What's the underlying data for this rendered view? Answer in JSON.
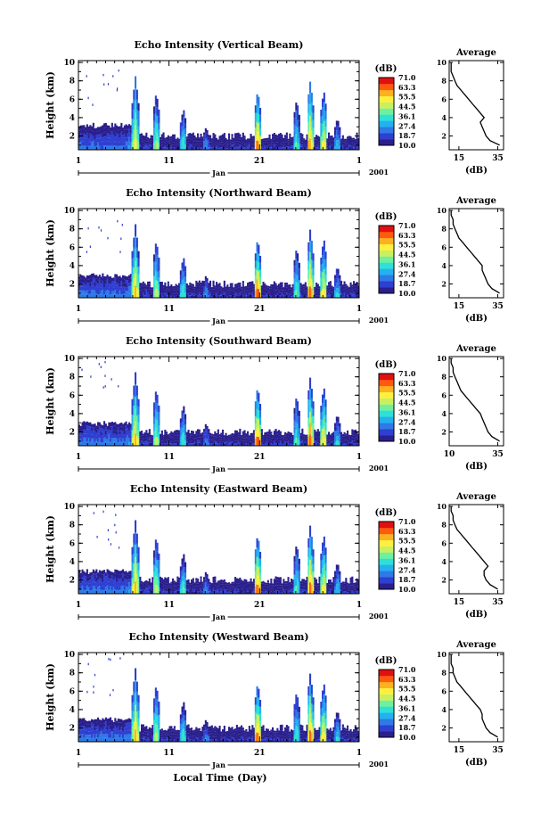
{
  "figure": {
    "xlabel_bottom": "Local Time (Day)",
    "month_label": "Jan",
    "year_label": "2001",
    "x_ticks": [
      "1",
      "11",
      "21",
      "1"
    ],
    "y_label": "Height (km)",
    "y_ticks": [
      "2",
      "4",
      "6",
      "8",
      "10"
    ],
    "colorbar_title": "(dB)",
    "colorbar_ticks": [
      "71.0",
      "63.3",
      "55.5",
      "44.5",
      "36.1",
      "27.4",
      "18.7",
      "10.0"
    ],
    "avg_title": "Average",
    "avg_xlabel": "(dB)"
  },
  "colors": {
    "scale": [
      "#2a1f8c",
      "#2f3fd0",
      "#2e7ae6",
      "#25b0f0",
      "#2ee0d8",
      "#6ef0a0",
      "#c8f060",
      "#fff040",
      "#ffb020",
      "#ff5a10",
      "#e01010"
    ]
  },
  "chart_data": [
    {
      "type": "heatmap",
      "title": "Echo Intensity (Vertical Beam)",
      "xlabel": "Local Time (Day)",
      "ylabel": "Height (km)",
      "x_range": [
        "2001-01-01",
        "2001-02-01"
      ],
      "ylim": [
        0.5,
        10.2
      ],
      "clim": [
        10.0,
        71.0
      ],
      "columns": [
        {
          "day": 1,
          "top_km": 2.8,
          "peak_db": 24
        },
        {
          "day": 3,
          "top_km": 3.2,
          "peak_db": 24
        },
        {
          "day": 5,
          "top_km": 3.5,
          "peak_db": 24
        },
        {
          "day": 6.5,
          "top_km": 3.2,
          "peak_db": 28
        },
        {
          "day": 7.2,
          "top_km": 8.5,
          "peak_db": 55
        },
        {
          "day": 8.5,
          "top_km": 2.0,
          "peak_db": 22
        },
        {
          "day": 9.5,
          "top_km": 6.8,
          "peak_db": 48
        },
        {
          "day": 12.5,
          "top_km": 5.0,
          "peak_db": 40
        },
        {
          "day": 15,
          "top_km": 3.0,
          "peak_db": 30
        },
        {
          "day": 20.7,
          "top_km": 7.0,
          "peak_db": 65
        },
        {
          "day": 25,
          "top_km": 6.0,
          "peak_db": 40
        },
        {
          "day": 26.5,
          "top_km": 8.0,
          "peak_db": 62
        },
        {
          "day": 28,
          "top_km": 7.0,
          "peak_db": 55
        },
        {
          "day": 29.5,
          "top_km": 4.0,
          "peak_db": 35
        }
      ],
      "profile_title": "Average",
      "profile_xlim": [
        10,
        38
      ],
      "profile_xticks": [
        "15",
        "35"
      ],
      "profile": {
        "height_km": [
          1.0,
          1.5,
          2.0,
          2.5,
          3.0,
          3.5,
          4.0,
          4.5,
          5.0,
          5.5,
          6.0,
          6.5,
          7.0,
          7.5,
          8.0,
          8.5,
          9.0,
          9.5,
          10.0
        ],
        "db": [
          36,
          31,
          29,
          28,
          27,
          26,
          28,
          26,
          24,
          22,
          20,
          18,
          16,
          14,
          13,
          12,
          11,
          11,
          11
        ]
      }
    },
    {
      "type": "heatmap",
      "title": "Echo Intensity (Northward Beam)",
      "xlabel": "Local Time (Day)",
      "ylabel": "Height (km)",
      "x_range": [
        "2001-01-01",
        "2001-02-01"
      ],
      "ylim": [
        0.5,
        10.2
      ],
      "clim": [
        10.0,
        71.0
      ],
      "columns": [
        {
          "day": 1,
          "top_km": 2.8,
          "peak_db": 26
        },
        {
          "day": 3,
          "top_km": 3.0,
          "peak_db": 26
        },
        {
          "day": 5,
          "top_km": 3.2,
          "peak_db": 26
        },
        {
          "day": 6.5,
          "top_km": 3.0,
          "peak_db": 30
        },
        {
          "day": 7.2,
          "top_km": 8.5,
          "peak_db": 58
        },
        {
          "day": 8.5,
          "top_km": 2.0,
          "peak_db": 22
        },
        {
          "day": 9.5,
          "top_km": 6.8,
          "peak_db": 50
        },
        {
          "day": 12.5,
          "top_km": 5.0,
          "peak_db": 42
        },
        {
          "day": 15,
          "top_km": 3.0,
          "peak_db": 30
        },
        {
          "day": 20.7,
          "top_km": 7.0,
          "peak_db": 66
        },
        {
          "day": 25,
          "top_km": 6.0,
          "peak_db": 42
        },
        {
          "day": 26.5,
          "top_km": 8.0,
          "peak_db": 64
        },
        {
          "day": 28,
          "top_km": 7.0,
          "peak_db": 56
        },
        {
          "day": 29.5,
          "top_km": 4.0,
          "peak_db": 36
        }
      ],
      "profile_title": "Average",
      "profile_xlim": [
        10,
        38
      ],
      "profile_xticks": [
        "15",
        "35"
      ],
      "profile": {
        "height_km": [
          1.0,
          1.5,
          2.0,
          2.5,
          3.0,
          3.5,
          4.0,
          4.5,
          5.0,
          5.5,
          6.0,
          6.5,
          7.0,
          7.5,
          8.0,
          8.5,
          9.0,
          9.5,
          10.0
        ],
        "db": [
          36,
          32,
          30,
          29,
          28,
          27,
          27,
          25,
          23,
          21,
          19,
          17,
          15,
          14,
          13,
          12,
          12,
          11,
          11
        ]
      }
    },
    {
      "type": "heatmap",
      "title": "Echo Intensity (Southward Beam)",
      "xlabel": "Local Time (Day)",
      "ylabel": "Height (km)",
      "x_range": [
        "2001-01-01",
        "2001-02-01"
      ],
      "ylim": [
        0.5,
        10.2
      ],
      "clim": [
        10.0,
        71.0
      ],
      "columns": [
        {
          "day": 1,
          "top_km": 2.8,
          "peak_db": 26
        },
        {
          "day": 3,
          "top_km": 3.0,
          "peak_db": 26
        },
        {
          "day": 5,
          "top_km": 3.2,
          "peak_db": 26
        },
        {
          "day": 6.5,
          "top_km": 3.0,
          "peak_db": 30
        },
        {
          "day": 7.2,
          "top_km": 8.5,
          "peak_db": 58
        },
        {
          "day": 8.5,
          "top_km": 2.0,
          "peak_db": 22
        },
        {
          "day": 9.5,
          "top_km": 6.8,
          "peak_db": 50
        },
        {
          "day": 12.5,
          "top_km": 5.0,
          "peak_db": 42
        },
        {
          "day": 15,
          "top_km": 3.0,
          "peak_db": 30
        },
        {
          "day": 20.7,
          "top_km": 7.0,
          "peak_db": 66
        },
        {
          "day": 25,
          "top_km": 6.0,
          "peak_db": 42
        },
        {
          "day": 26.5,
          "top_km": 8.0,
          "peak_db": 64
        },
        {
          "day": 28,
          "top_km": 7.0,
          "peak_db": 56
        },
        {
          "day": 29.5,
          "top_km": 4.0,
          "peak_db": 36
        }
      ],
      "profile_title": "Average",
      "profile_xlim": [
        10,
        38
      ],
      "profile_xticks": [
        "10",
        "35"
      ],
      "profile": {
        "height_km": [
          1.0,
          1.5,
          2.0,
          2.5,
          3.0,
          3.5,
          4.0,
          4.5,
          5.0,
          5.5,
          6.0,
          6.5,
          7.0,
          7.5,
          8.0,
          8.5,
          9.0,
          9.5,
          10.0
        ],
        "db": [
          36,
          32,
          30,
          29,
          28,
          27,
          26,
          24,
          22,
          20,
          18,
          16,
          15,
          14,
          13,
          12,
          12,
          11,
          11
        ]
      }
    },
    {
      "type": "heatmap",
      "title": "Echo Intensity (Eastward Beam)",
      "xlabel": "Local Time (Day)",
      "ylabel": "Height (km)",
      "x_range": [
        "2001-01-01",
        "2001-02-01"
      ],
      "ylim": [
        0.5,
        10.2
      ],
      "clim": [
        10.0,
        71.0
      ],
      "columns": [
        {
          "day": 1,
          "top_km": 2.8,
          "peak_db": 26
        },
        {
          "day": 3,
          "top_km": 3.0,
          "peak_db": 26
        },
        {
          "day": 5,
          "top_km": 3.2,
          "peak_db": 26
        },
        {
          "day": 6.5,
          "top_km": 3.0,
          "peak_db": 30
        },
        {
          "day": 7.2,
          "top_km": 8.5,
          "peak_db": 58
        },
        {
          "day": 8.5,
          "top_km": 2.0,
          "peak_db": 22
        },
        {
          "day": 9.5,
          "top_km": 6.8,
          "peak_db": 50
        },
        {
          "day": 12.5,
          "top_km": 5.0,
          "peak_db": 42
        },
        {
          "day": 15,
          "top_km": 3.0,
          "peak_db": 30
        },
        {
          "day": 20.7,
          "top_km": 7.0,
          "peak_db": 66
        },
        {
          "day": 25,
          "top_km": 6.0,
          "peak_db": 42
        },
        {
          "day": 26.5,
          "top_km": 8.0,
          "peak_db": 64
        },
        {
          "day": 28,
          "top_km": 7.0,
          "peak_db": 56
        },
        {
          "day": 29.5,
          "top_km": 4.0,
          "peak_db": 36
        }
      ],
      "profile_title": "Average",
      "profile_xlim": [
        10,
        38
      ],
      "profile_xticks": [
        "15",
        "35"
      ],
      "profile": {
        "height_km": [
          1.0,
          1.5,
          2.0,
          2.5,
          3.0,
          3.5,
          4.0,
          4.5,
          5.0,
          5.5,
          6.0,
          6.5,
          7.0,
          7.5,
          8.0,
          8.5,
          9.0,
          9.5,
          10.0
        ],
        "db": [
          35,
          31,
          29,
          28,
          28,
          30,
          28,
          26,
          24,
          22,
          20,
          18,
          16,
          14,
          13,
          12,
          12,
          11,
          11
        ]
      }
    },
    {
      "type": "heatmap",
      "title": "Echo Intensity (Westward Beam)",
      "xlabel": "Local Time (Day)",
      "ylabel": "Height (km)",
      "x_range": [
        "2001-01-01",
        "2001-02-01"
      ],
      "ylim": [
        0.5,
        10.2
      ],
      "clim": [
        10.0,
        71.0
      ],
      "columns": [
        {
          "day": 1,
          "top_km": 2.8,
          "peak_db": 26
        },
        {
          "day": 3,
          "top_km": 3.0,
          "peak_db": 26
        },
        {
          "day": 5,
          "top_km": 3.2,
          "peak_db": 26
        },
        {
          "day": 6.5,
          "top_km": 3.0,
          "peak_db": 30
        },
        {
          "day": 7.2,
          "top_km": 8.5,
          "peak_db": 58
        },
        {
          "day": 8.5,
          "top_km": 2.0,
          "peak_db": 22
        },
        {
          "day": 9.5,
          "top_km": 6.8,
          "peak_db": 50
        },
        {
          "day": 12.5,
          "top_km": 5.0,
          "peak_db": 42
        },
        {
          "day": 15,
          "top_km": 3.0,
          "peak_db": 30
        },
        {
          "day": 20.7,
          "top_km": 7.0,
          "peak_db": 66
        },
        {
          "day": 25,
          "top_km": 6.0,
          "peak_db": 42
        },
        {
          "day": 26.5,
          "top_km": 8.0,
          "peak_db": 64
        },
        {
          "day": 28,
          "top_km": 7.0,
          "peak_db": 56
        },
        {
          "day": 29.5,
          "top_km": 4.0,
          "peak_db": 36
        }
      ],
      "profile_title": "Average",
      "profile_xlim": [
        10,
        38
      ],
      "profile_xticks": [
        "15",
        "35"
      ],
      "profile": {
        "height_km": [
          1.0,
          1.5,
          2.0,
          2.5,
          3.0,
          3.5,
          4.0,
          4.5,
          5.0,
          5.5,
          6.0,
          6.5,
          7.0,
          7.5,
          8.0,
          8.5,
          9.0,
          9.5,
          10.0
        ],
        "db": [
          35,
          31,
          29,
          28,
          27,
          27,
          26,
          24,
          22,
          20,
          18,
          16,
          14,
          13,
          12,
          12,
          11,
          11,
          11
        ]
      }
    }
  ]
}
